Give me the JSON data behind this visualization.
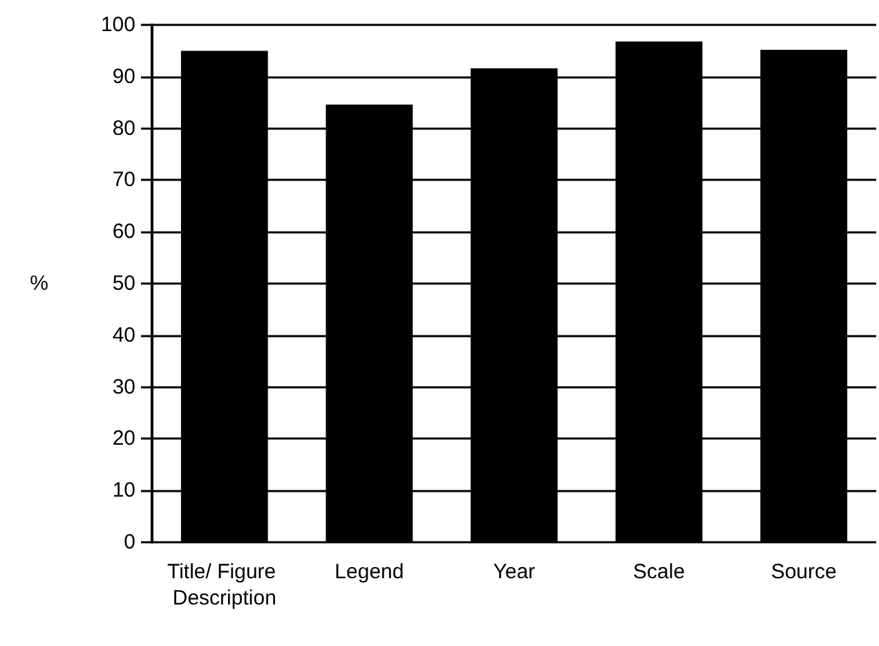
{
  "chart_data": {
    "type": "bar",
    "ylabel": "%",
    "categories": [
      "Title/ Figure Description",
      "Legend",
      "Year",
      "Scale",
      "Source"
    ],
    "values": [
      95,
      84.6,
      91.6,
      96.8,
      95.2
    ],
    "color": "#000000",
    "ylim": [
      0,
      100
    ],
    "yticks": [
      0,
      10,
      20,
      30,
      40,
      50,
      60,
      70,
      80,
      90,
      100
    ],
    "grid": "y"
  }
}
